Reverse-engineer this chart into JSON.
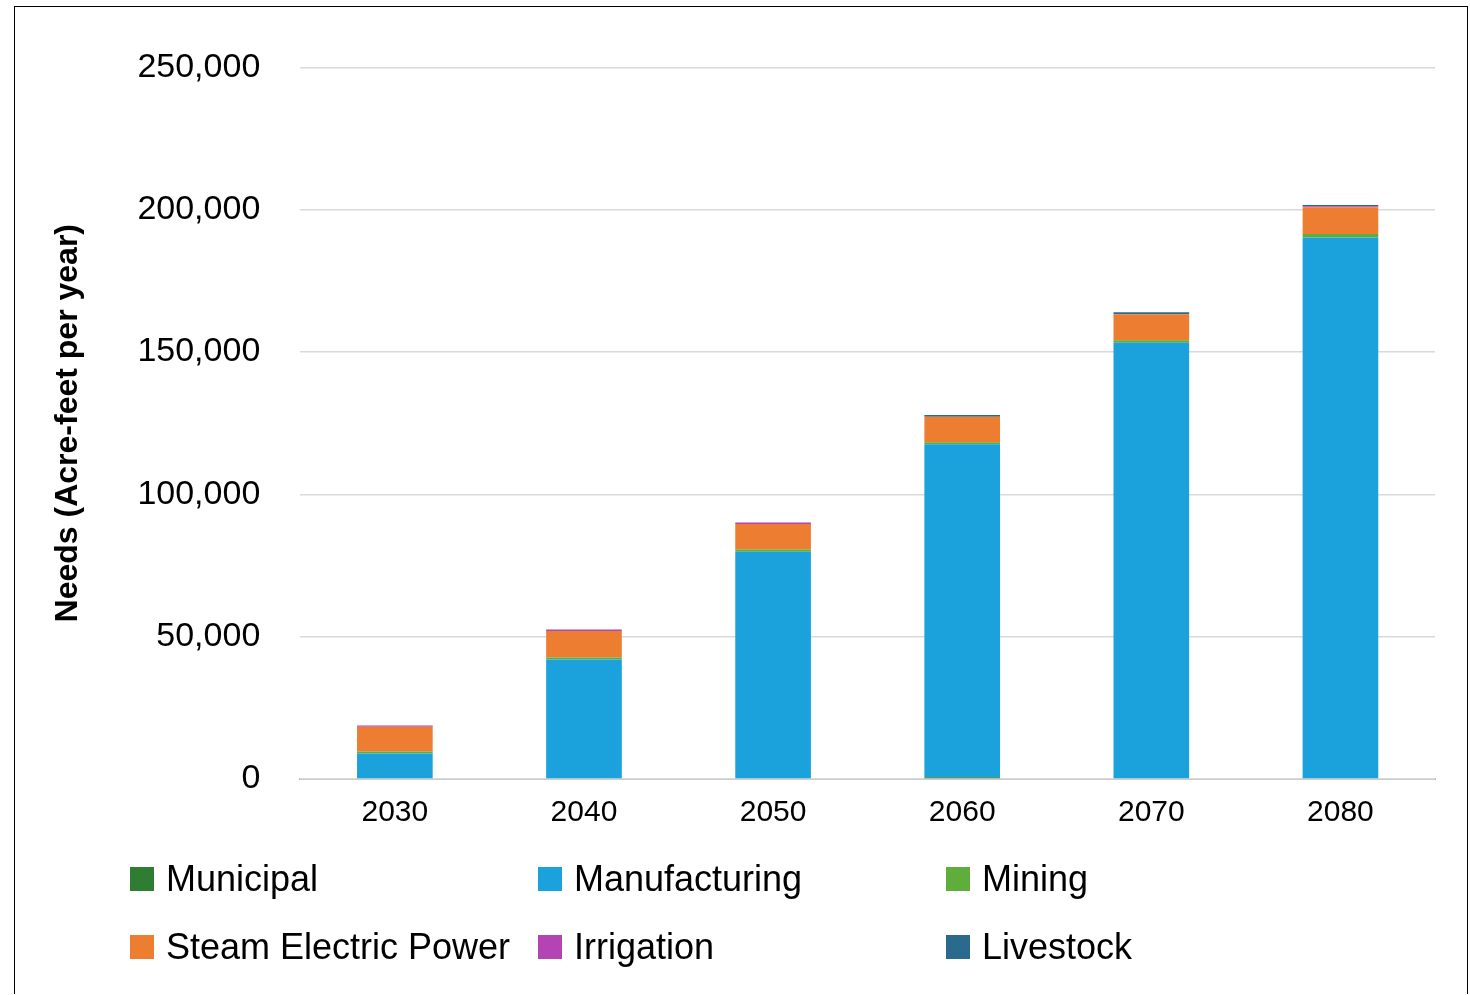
{
  "chart_data": {
    "type": "bar",
    "stacked": true,
    "ylabel": "Needs (Acre-feet per year)",
    "categories": [
      "2030",
      "2040",
      "2050",
      "2060",
      "2070",
      "2080"
    ],
    "series": [
      {
        "name": "Municipal",
        "color": "#2e7d32",
        "values": [
          0,
          0,
          0,
          600,
          0,
          0
        ]
      },
      {
        "name": "Manufacturing",
        "color": "#1ba1dc",
        "values": [
          9000,
          42000,
          79800,
          117000,
          153300,
          190200
        ]
      },
      {
        "name": "Mining",
        "color": "#5fae3b",
        "values": [
          700,
          700,
          800,
          700,
          800,
          1300
        ]
      },
      {
        "name": "Steam Electric Power",
        "color": "#ed7d31",
        "values": [
          8700,
          9300,
          9000,
          9000,
          9200,
          9400
        ]
      },
      {
        "name": "Irrigation",
        "color": "#b444b4",
        "values": [
          400,
          500,
          500,
          0,
          0,
          300
        ]
      },
      {
        "name": "Livestock",
        "color": "#2a6a8c",
        "values": [
          0,
          0,
          0,
          600,
          700,
          500
        ]
      }
    ],
    "ylim": [
      0,
      250000
    ],
    "yticks": [
      0,
      {
        "value": 50000,
        "label": "50,000"
      },
      {
        "value": 100000,
        "label": "100,000"
      },
      {
        "value": 150000,
        "label": "150,000"
      },
      {
        "value": 200000,
        "label": "200,000"
      },
      {
        "value": 250000,
        "label": "250,000"
      }
    ],
    "grid": "y",
    "legend": "bottom"
  }
}
